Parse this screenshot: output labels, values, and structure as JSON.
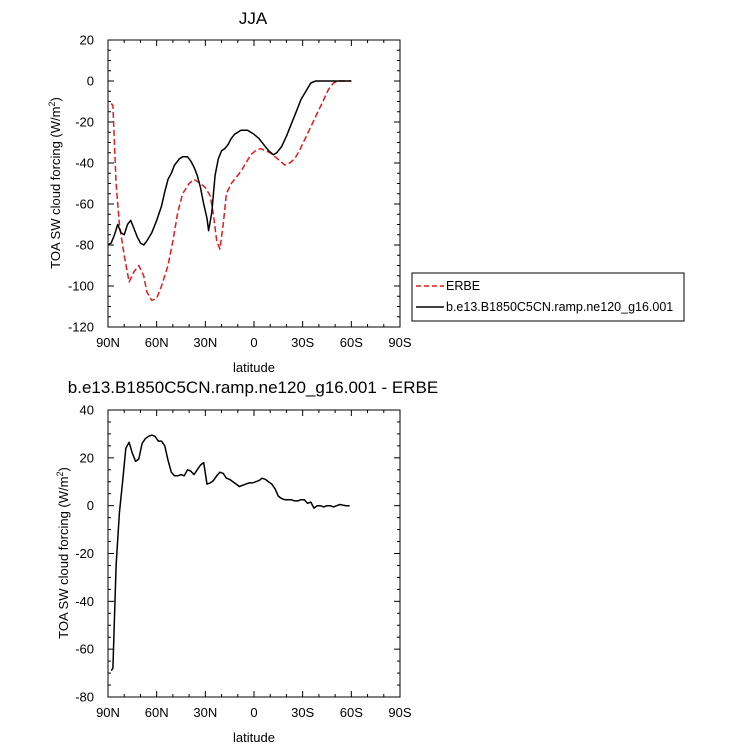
{
  "chart_data": [
    {
      "type": "line",
      "title": "JJA",
      "xlabel": "latitude",
      "ylabel": "TOA SW cloud forcing (W/m",
      "ylabel_sup": "2",
      "ylabel_end": ")",
      "xlim": [
        90,
        -90
      ],
      "ylim": [
        -120,
        20
      ],
      "xticks": [
        {
          "value": 90,
          "label": "90N"
        },
        {
          "value": 60,
          "label": "60N"
        },
        {
          "value": 30,
          "label": "30N"
        },
        {
          "value": 0,
          "label": "0"
        },
        {
          "value": -30,
          "label": "30S"
        },
        {
          "value": -60,
          "label": "60S"
        },
        {
          "value": -90,
          "label": "90S"
        }
      ],
      "yticks": [
        20,
        0,
        -20,
        -40,
        -60,
        -80,
        -100,
        -120
      ],
      "legend_position": "right-outside",
      "series": [
        {
          "name": "ERBE",
          "color": "#e41a1c",
          "dash": "dashed",
          "points": [
            [
              88,
              -11
            ],
            [
              87,
              -12
            ],
            [
              85,
              -50
            ],
            [
              83,
              -70
            ],
            [
              80,
              -85
            ],
            [
              77,
              -98
            ],
            [
              74,
              -93
            ],
            [
              71,
              -90
            ],
            [
              68,
              -95
            ],
            [
              66,
              -103
            ],
            [
              63,
              -107
            ],
            [
              60,
              -106
            ],
            [
              57,
              -100
            ],
            [
              53,
              -90
            ],
            [
              50,
              -78
            ],
            [
              47,
              -64
            ],
            [
              44,
              -55
            ],
            [
              40,
              -50
            ],
            [
              37,
              -48
            ],
            [
              33,
              -50
            ],
            [
              30,
              -52
            ],
            [
              27,
              -56
            ],
            [
              25,
              -65
            ],
            [
              23,
              -78
            ],
            [
              21,
              -82
            ],
            [
              19,
              -70
            ],
            [
              17,
              -55
            ],
            [
              14,
              -50
            ],
            [
              11,
              -47
            ],
            [
              8,
              -44
            ],
            [
              5,
              -40
            ],
            [
              2,
              -36
            ],
            [
              -1,
              -34
            ],
            [
              -4,
              -33
            ],
            [
              -7,
              -34
            ],
            [
              -10,
              -35
            ],
            [
              -13,
              -37
            ],
            [
              -16,
              -39
            ],
            [
              -19,
              -41
            ],
            [
              -22,
              -40
            ],
            [
              -25,
              -38
            ],
            [
              -28,
              -34
            ],
            [
              -31,
              -29
            ],
            [
              -34,
              -24
            ],
            [
              -37,
              -19
            ],
            [
              -40,
              -14
            ],
            [
              -43,
              -9
            ],
            [
              -46,
              -4
            ],
            [
              -49,
              -1
            ],
            [
              -52,
              0
            ],
            [
              -55,
              0
            ],
            [
              -58,
              0
            ],
            [
              -60,
              0
            ]
          ]
        },
        {
          "name": "b.e13.B1850C5CN.ramp.ne120_g16.001",
          "color": "#000000",
          "dash": "solid",
          "points": [
            [
              90,
              -80
            ],
            [
              88,
              -79
            ],
            [
              86,
              -75
            ],
            [
              84,
              -70
            ],
            [
              82,
              -74
            ],
            [
              80,
              -75
            ],
            [
              78,
              -70
            ],
            [
              76,
              -68
            ],
            [
              74,
              -72
            ],
            [
              72,
              -76
            ],
            [
              70,
              -79
            ],
            [
              68,
              -80
            ],
            [
              66,
              -78
            ],
            [
              63,
              -74
            ],
            [
              60,
              -68
            ],
            [
              57,
              -61
            ],
            [
              55,
              -54
            ],
            [
              53,
              -48
            ],
            [
              51,
              -45
            ],
            [
              49,
              -41
            ],
            [
              46,
              -38
            ],
            [
              44,
              -37
            ],
            [
              41,
              -37
            ],
            [
              39,
              -39
            ],
            [
              37,
              -42
            ],
            [
              35,
              -46
            ],
            [
              33,
              -52
            ],
            [
              31,
              -60
            ],
            [
              29,
              -67
            ],
            [
              28,
              -73
            ],
            [
              26,
              -64
            ],
            [
              24,
              -46
            ],
            [
              22,
              -38
            ],
            [
              20,
              -34
            ],
            [
              18,
              -33
            ],
            [
              16,
              -31
            ],
            [
              14,
              -28
            ],
            [
              12,
              -26
            ],
            [
              10,
              -25
            ],
            [
              8,
              -24
            ],
            [
              6,
              -24
            ],
            [
              4,
              -24
            ],
            [
              2,
              -25
            ],
            [
              0,
              -26
            ],
            [
              -3,
              -28
            ],
            [
              -6,
              -31
            ],
            [
              -9,
              -34
            ],
            [
              -12,
              -36
            ],
            [
              -14,
              -35
            ],
            [
              -17,
              -32
            ],
            [
              -20,
              -27
            ],
            [
              -23,
              -21
            ],
            [
              -26,
              -15
            ],
            [
              -29,
              -9
            ],
            [
              -32,
              -5
            ],
            [
              -35,
              -1
            ],
            [
              -38,
              0
            ],
            [
              -42,
              0
            ],
            [
              -46,
              0
            ],
            [
              -50,
              0
            ],
            [
              -55,
              0
            ],
            [
              -60,
              0
            ]
          ]
        }
      ]
    },
    {
      "type": "line",
      "title": "b.e13.B1850C5CN.ramp.ne120_g16.001 - ERBE",
      "xlabel": "latitude",
      "ylabel": "TOA SW cloud forcing (W/m",
      "ylabel_sup": "2",
      "ylabel_end": ")",
      "xlim": [
        90,
        -90
      ],
      "ylim": [
        -80,
        40
      ],
      "xticks": [
        {
          "value": 90,
          "label": "90N"
        },
        {
          "value": 60,
          "label": "60N"
        },
        {
          "value": 30,
          "label": "30N"
        },
        {
          "value": 0,
          "label": "0"
        },
        {
          "value": -30,
          "label": "30S"
        },
        {
          "value": -60,
          "label": "60S"
        },
        {
          "value": -90,
          "label": "90S"
        }
      ],
      "yticks": [
        40,
        20,
        0,
        -20,
        -40,
        -60,
        -80
      ],
      "series": [
        {
          "color": "#000000",
          "dash": "solid",
          "points": [
            [
              88,
              -69
            ],
            [
              87,
              -68
            ],
            [
              85,
              -25
            ],
            [
              83,
              -3
            ],
            [
              81,
              10
            ],
            [
              79,
              24
            ],
            [
              77,
              26.5
            ],
            [
              75,
              22
            ],
            [
              73,
              18.5
            ],
            [
              71,
              19.5
            ],
            [
              69,
              26
            ],
            [
              67,
              28
            ],
            [
              65,
              29
            ],
            [
              63,
              29.5
            ],
            [
              61,
              29
            ],
            [
              59,
              27
            ],
            [
              57,
              27
            ],
            [
              55,
              25
            ],
            [
              53,
              19
            ],
            [
              51,
              14
            ],
            [
              49,
              12.5
            ],
            [
              47,
              12.5
            ],
            [
              45,
              13
            ],
            [
              43,
              12.5
            ],
            [
              41,
              15
            ],
            [
              39,
              14.5
            ],
            [
              37,
              13
            ],
            [
              35,
              15
            ],
            [
              33,
              17
            ],
            [
              31,
              18
            ],
            [
              29,
              9
            ],
            [
              27,
              9.5
            ],
            [
              25,
              10.5
            ],
            [
              23,
              12.5
            ],
            [
              21,
              14
            ],
            [
              19,
              13.5
            ],
            [
              17,
              11.5
            ],
            [
              15,
              11
            ],
            [
              13,
              10
            ],
            [
              11,
              9
            ],
            [
              9,
              8
            ],
            [
              7,
              8.5
            ],
            [
              5,
              9
            ],
            [
              3,
              9.5
            ],
            [
              1,
              9.5
            ],
            [
              -1,
              10
            ],
            [
              -3,
              10.5
            ],
            [
              -5,
              11.5
            ],
            [
              -7,
              11
            ],
            [
              -9,
              10
            ],
            [
              -11,
              9
            ],
            [
              -13,
              7
            ],
            [
              -15,
              4
            ],
            [
              -17,
              3
            ],
            [
              -19,
              2.5
            ],
            [
              -21,
              2.5
            ],
            [
              -23,
              2.5
            ],
            [
              -25,
              2
            ],
            [
              -27,
              2
            ],
            [
              -29,
              2.5
            ],
            [
              -31,
              2.5
            ],
            [
              -33,
              1
            ],
            [
              -35,
              1.5
            ],
            [
              -37,
              -1
            ],
            [
              -39,
              0
            ],
            [
              -41,
              0
            ],
            [
              -43,
              -0.5
            ],
            [
              -45,
              0
            ],
            [
              -47,
              0
            ],
            [
              -49,
              -0.5
            ],
            [
              -51,
              0
            ],
            [
              -53,
              0.5
            ],
            [
              -55,
              0.2
            ],
            [
              -57,
              0
            ],
            [
              -59,
              0
            ]
          ]
        }
      ]
    }
  ]
}
